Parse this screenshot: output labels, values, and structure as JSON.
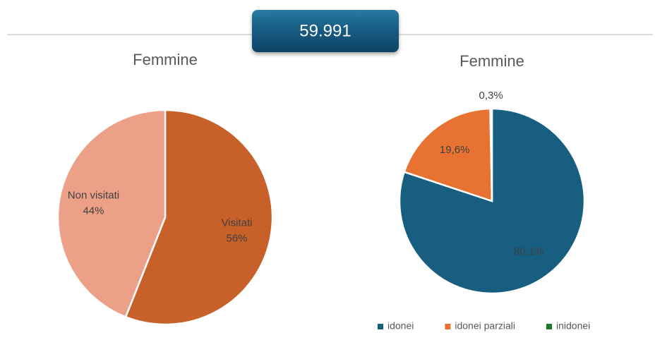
{
  "banner": "59.991",
  "chart_data": [
    {
      "type": "pie",
      "title": "Femmine",
      "categories": [
        "Visitati",
        "Non visitati"
      ],
      "values": [
        56,
        44
      ],
      "value_labels": [
        "56%",
        "44%"
      ],
      "colors": [
        "#c8602a",
        "#eda088"
      ]
    },
    {
      "type": "pie",
      "title": "Femmine",
      "categories": [
        "idonei",
        "idonei parziali",
        "inidonei"
      ],
      "values": [
        80.1,
        19.6,
        0.3
      ],
      "value_labels": [
        "80,1%",
        "19,6%",
        "0,3%"
      ],
      "colors": [
        "#175e80",
        "#e87232",
        "#1a7a2a"
      ],
      "legend": "bottom"
    }
  ]
}
